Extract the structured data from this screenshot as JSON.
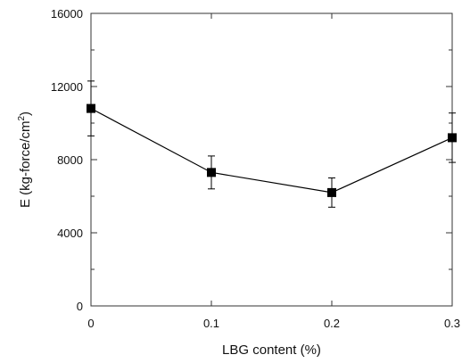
{
  "chart_data": {
    "type": "line",
    "title": "",
    "xlabel": "LBG content (%)",
    "ylabel_parts": {
      "prefix": "E (kg-force/cm",
      "superscript": "2",
      "suffix": ")"
    },
    "x": [
      0,
      0.1,
      0.2,
      0.3
    ],
    "x_tick_labels": [
      "0",
      "0.1",
      "0.2",
      "0.3"
    ],
    "xlim": [
      0,
      0.3
    ],
    "y_ticks": [
      0,
      4000,
      8000,
      12000,
      16000
    ],
    "ylim": [
      0,
      16000
    ],
    "grid": false,
    "series": [
      {
        "values": [
          10800,
          7300,
          6200,
          9200
        ],
        "error": [
          1500,
          900,
          800,
          1350
        ],
        "marker": "square",
        "color": "#000000"
      }
    ]
  }
}
